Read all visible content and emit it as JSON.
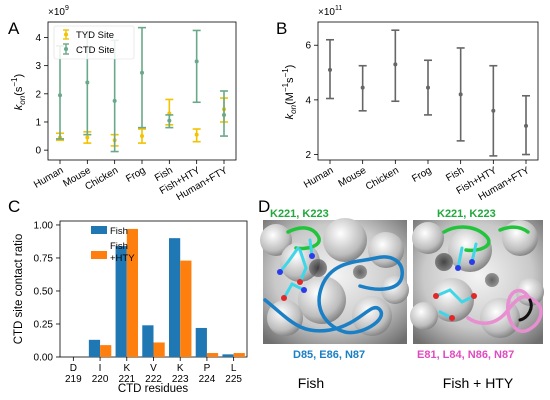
{
  "chart_data": [
    {
      "panel": "A",
      "type": "scatter",
      "ylabel": "k_on (s^-1)",
      "ylabel_main": "k",
      "ylabel_sub": "on",
      "ylabel_unit": "(s",
      "ylabel_unit_exp": "−1",
      "ylabel_unit_close": ")",
      "scale_base": "×10",
      "scale_exp": "9",
      "ylim": [
        -0.35,
        4.55
      ],
      "yticks": [
        "0",
        "1",
        "2",
        "3",
        "4"
      ],
      "categories": [
        "Human",
        "Mouse",
        "Chicken",
        "Frog",
        "Fish",
        "Fish+HTY",
        "Human+FTY"
      ],
      "legend_position": "top-left",
      "series": [
        {
          "name": "TYD Site",
          "color": "#f2c300",
          "points": [
            {
              "mean": 0.45,
              "low": 0.35,
              "high": 0.6
            },
            {
              "mean": 0.45,
              "low": 0.25,
              "high": 0.65
            },
            {
              "mean": 0.35,
              "low": 0.15,
              "high": 0.55
            },
            {
              "mean": 0.5,
              "low": 0.25,
              "high": 0.75
            },
            {
              "mean": 1.3,
              "low": 0.9,
              "high": 1.8
            },
            {
              "mean": 0.55,
              "low": 0.3,
              "high": 0.75
            },
            {
              "mean": 1.45,
              "low": 1.0,
              "high": 1.85
            }
          ]
        },
        {
          "name": "CTD Site",
          "color": "#6aa88a",
          "points": [
            {
              "mean": 1.95,
              "low": 0.4,
              "high": 3.7
            },
            {
              "mean": 2.4,
              "low": 0.55,
              "high": 4.2
            },
            {
              "mean": 1.75,
              "low": -0.05,
              "high": 3.9
            },
            {
              "mean": 2.75,
              "low": 0.8,
              "high": 4.35
            },
            {
              "mean": 1.05,
              "low": 0.8,
              "high": 1.25
            },
            {
              "mean": 3.15,
              "low": 1.7,
              "high": 4.25
            },
            {
              "mean": 1.25,
              "low": 0.5,
              "high": 2.1
            }
          ]
        }
      ]
    },
    {
      "panel": "B",
      "type": "scatter",
      "ylabel_main": "k",
      "ylabel_sub": "on",
      "ylabel_unit": "(M",
      "ylabel_unit_exp": "−1",
      "ylabel_unit_mid": "s",
      "ylabel_unit_exp2": "−1",
      "ylabel_unit_close": ")",
      "scale_base": "×10",
      "scale_exp": "11",
      "ylim": [
        1.8,
        6.85
      ],
      "yticks": [
        "2",
        "4",
        "6"
      ],
      "categories": [
        "Human",
        "Mouse",
        "Chicken",
        "Frog",
        "Fish",
        "Fish+HTY",
        "Human+FTY"
      ],
      "series": [
        {
          "color": "#666666",
          "points": [
            {
              "mean": 5.1,
              "low": 4.05,
              "high": 6.2
            },
            {
              "mean": 4.45,
              "low": 3.6,
              "high": 5.25
            },
            {
              "mean": 5.3,
              "low": 3.95,
              "high": 6.55
            },
            {
              "mean": 4.45,
              "low": 3.45,
              "high": 5.45
            },
            {
              "mean": 4.2,
              "low": 2.5,
              "high": 5.9
            },
            {
              "mean": 3.6,
              "low": 1.95,
              "high": 5.25
            },
            {
              "mean": 3.05,
              "low": 2.0,
              "high": 4.15
            }
          ]
        }
      ]
    },
    {
      "panel": "C",
      "type": "bar",
      "ylabel": "CTD site contact ratio",
      "xlabel": "CTD residues",
      "ylim": [
        0,
        1.03
      ],
      "yticks": [
        "0.00",
        "0.25",
        "0.50",
        "0.75",
        "1.00"
      ],
      "categories": [
        {
          "letter": "D",
          "number": "219"
        },
        {
          "letter": "I",
          "number": "220"
        },
        {
          "letter": "K",
          "number": "221"
        },
        {
          "letter": "V",
          "number": "222"
        },
        {
          "letter": "K",
          "number": "223"
        },
        {
          "letter": "P",
          "number": "224"
        },
        {
          "letter": "L",
          "number": "225"
        }
      ],
      "legend_position": "top-left",
      "series": [
        {
          "name": "Fish",
          "color": "#1f77b4",
          "values": [
            0.0,
            0.13,
            0.84,
            0.24,
            0.9,
            0.22,
            0.02
          ]
        },
        {
          "name": "Fish\n+HTY",
          "name_lines": [
            "Fish",
            "+HTY"
          ],
          "color": "#ff7f0e",
          "values": [
            0.0,
            0.09,
            0.97,
            0.11,
            0.73,
            0.03,
            0.03
          ]
        }
      ]
    }
  ],
  "panels": {
    "A": "A",
    "B": "B",
    "C": "C",
    "D": "D"
  },
  "structure": {
    "left": {
      "top_label": "K221, K223",
      "bottom_label": "D85, E86, N87",
      "caption": "Fish",
      "top_color": "#22a83c",
      "bottom_color": "#1a7fc4"
    },
    "right": {
      "top_label": "K221, K223",
      "bottom_label": "E81, L84, N86, N87",
      "caption": "Fish + HTY",
      "top_color": "#22a83c",
      "bottom_color": "#e04ac0"
    }
  }
}
